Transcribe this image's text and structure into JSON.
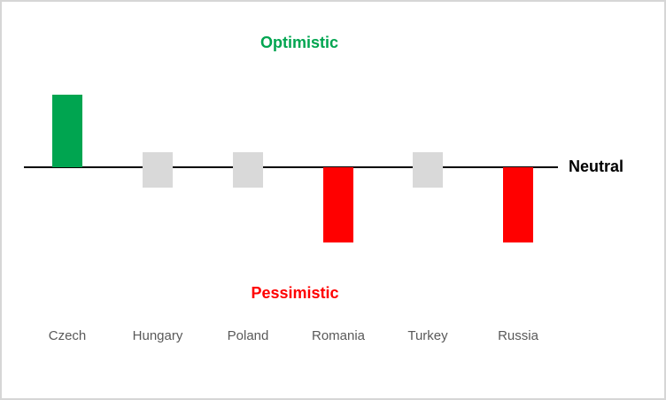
{
  "chart": {
    "optimistic_label": "Optimistic",
    "pessimistic_label": "Pessimistic",
    "neutral_label": "Neutral"
  },
  "chart_data": {
    "type": "bar",
    "title": "",
    "xlabel": "",
    "ylabel": "",
    "categories": [
      "Czech",
      "Hungary",
      "Poland",
      "Romania",
      "Turkey",
      "Russia"
    ],
    "values": [
      0.82,
      0,
      0,
      -0.85,
      0,
      -0.85
    ],
    "sentiments": [
      "optimistic",
      "neutral",
      "neutral",
      "pessimistic",
      "neutral",
      "pessimistic"
    ],
    "neutral_band": {
      "from": -0.23,
      "to": 0.17
    },
    "ylim": [
      -1,
      1
    ],
    "gridlines": false,
    "legend": false,
    "annotations": [
      {
        "text": "Optimistic",
        "color": "#00a550",
        "position": "top-center"
      },
      {
        "text": "Pessimistic",
        "color": "#ff0000",
        "position": "bottom-center"
      },
      {
        "text": "Neutral",
        "color": "#000000",
        "position": "axis-right"
      }
    ],
    "colors": {
      "optimistic": "#00a550",
      "pessimistic": "#ff0000",
      "neutral": "#d9d9d9",
      "axis": "#000000",
      "category_label": "#595959"
    }
  }
}
